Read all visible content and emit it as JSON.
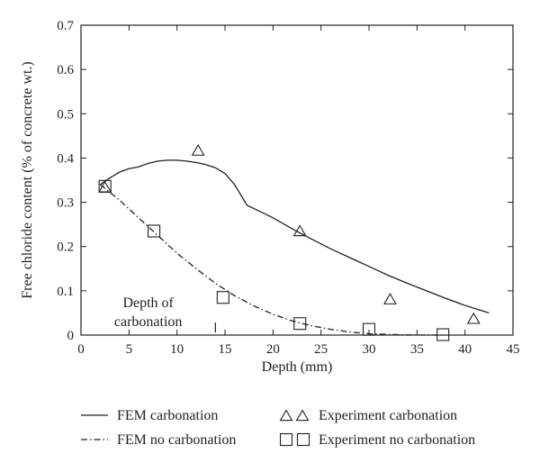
{
  "chart_data": {
    "type": "line",
    "xlabel": "Depth (mm)",
    "ylabel": "Free chloride content (% of concrete wt.)",
    "xlim": [
      0,
      45
    ],
    "ylim": [
      0,
      0.7
    ],
    "x_ticks": [
      0,
      5,
      10,
      15,
      20,
      25,
      30,
      35,
      40,
      45
    ],
    "y_ticks": [
      0,
      0.1,
      0.2,
      0.3,
      0.4,
      0.5,
      0.6,
      0.7
    ],
    "grid": false,
    "legend_position": "bottom",
    "series": [
      {
        "name": "FEM carbonation",
        "kind": "line",
        "style": "solid",
        "x": [
          2.0,
          3.0,
          4.0,
          5.0,
          6.0,
          7.0,
          8.0,
          9.0,
          10.0,
          11.0,
          12.0,
          13.0,
          14.0,
          15.0,
          16.0,
          17.3,
          18.0,
          20.0,
          22.0,
          24.0,
          26.0,
          28.0,
          30.0,
          32.0,
          34.0,
          36.0,
          38.0,
          40.0,
          42.5
        ],
        "y": [
          0.34,
          0.355,
          0.368,
          0.376,
          0.38,
          0.388,
          0.393,
          0.395,
          0.395,
          0.393,
          0.39,
          0.385,
          0.378,
          0.365,
          0.34,
          0.293,
          0.286,
          0.265,
          0.24,
          0.217,
          0.195,
          0.175,
          0.155,
          0.135,
          0.117,
          0.1,
          0.083,
          0.067,
          0.05
        ]
      },
      {
        "name": "FEM no carbonation",
        "kind": "line",
        "style": "dash-dot",
        "x": [
          2.0,
          4.0,
          6.0,
          8.0,
          10.0,
          12.0,
          14.0,
          16.0,
          18.0,
          20.0,
          22.0,
          24.0,
          26.0,
          28.0,
          30.0,
          32.0,
          34.0,
          36.0,
          38.0
        ],
        "y": [
          0.34,
          0.305,
          0.265,
          0.225,
          0.185,
          0.15,
          0.117,
          0.089,
          0.066,
          0.047,
          0.032,
          0.021,
          0.013,
          0.007,
          0.003,
          0.0015,
          0.0005,
          0.0,
          0.0
        ]
      },
      {
        "name": "Experiment carbonation",
        "kind": "scatter",
        "marker": "triangle",
        "x": [
          2.5,
          12.2,
          22.8,
          32.2,
          40.9
        ],
        "y": [
          0.333,
          0.416,
          0.234,
          0.08,
          0.036
        ]
      },
      {
        "name": "Experiment no carbonation",
        "kind": "scatter",
        "marker": "square",
        "x": [
          2.5,
          7.6,
          14.8,
          22.8,
          30.0,
          37.7
        ],
        "y": [
          0.336,
          0.235,
          0.085,
          0.026,
          0.013,
          0.001
        ]
      }
    ],
    "annotations": [
      {
        "id": "depth-of-carbonation",
        "lines": [
          "Depth of",
          "carbonation"
        ],
        "x": 14.0
      }
    ]
  },
  "colors": {
    "ink": "#231f20",
    "background": "#ffffff"
  }
}
